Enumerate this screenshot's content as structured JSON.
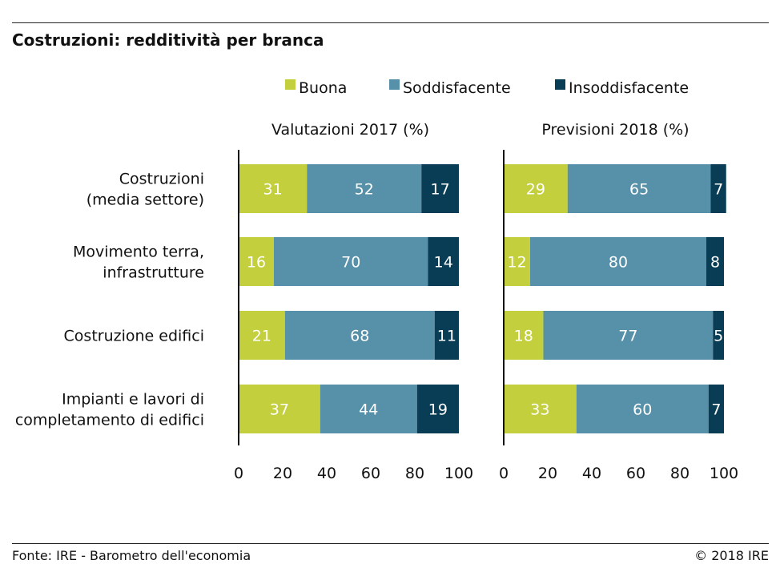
{
  "title": "Costruzioni: redditività per branca",
  "footer": {
    "source": "Fonte: IRE - Barometro dell'economia",
    "copyright": "© 2018 IRE"
  },
  "colors": {
    "buona": "#c3cf3c",
    "soddisfacente": "#5790a9",
    "insoddisfacente": "#083d55"
  },
  "chart_data": [
    {
      "type": "bar",
      "orientation": "horizontal",
      "stacked": true,
      "title": "Valutazioni 2017 (%)",
      "categories": [
        "Costruzioni\n(media settore)",
        "Movimento terra,\ninfrastrutture",
        "Costruzione edifici",
        "Impianti e lavori di\ncompletamento di edifici"
      ],
      "series": [
        {
          "name": "Buona",
          "values": [
            31,
            16,
            21,
            37
          ]
        },
        {
          "name": "Soddisfacente",
          "values": [
            52,
            70,
            68,
            44
          ]
        },
        {
          "name": "Insoddisfacente",
          "values": [
            17,
            14,
            11,
            19
          ]
        }
      ],
      "xlim": [
        0,
        100
      ],
      "xticks": [
        "0",
        "20",
        "40",
        "60",
        "80",
        "100"
      ],
      "legend": "top",
      "grid": false
    },
    {
      "type": "bar",
      "orientation": "horizontal",
      "stacked": true,
      "title": "Previsioni 2018 (%)",
      "categories": [
        "Costruzioni\n(media settore)",
        "Movimento terra,\ninfrastrutture",
        "Costruzione edifici",
        "Impianti e lavori di\ncompletamento di edifici"
      ],
      "series": [
        {
          "name": "Buona",
          "values": [
            29,
            12,
            18,
            33
          ]
        },
        {
          "name": "Soddisfacente",
          "values": [
            65,
            80,
            77,
            60
          ]
        },
        {
          "name": "Insoddisfacente",
          "values": [
            7,
            8,
            5,
            7
          ]
        }
      ],
      "xlim": [
        0,
        100
      ],
      "xticks": [
        "0",
        "20",
        "40",
        "60",
        "80",
        "100"
      ],
      "legend": "top",
      "grid": false
    }
  ]
}
